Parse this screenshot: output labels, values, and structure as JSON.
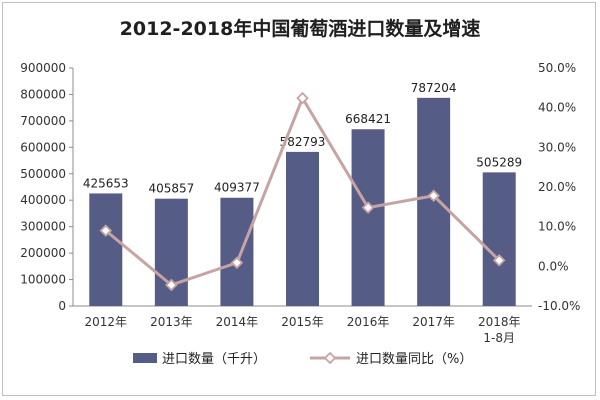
{
  "chart_data": {
    "type": "bar",
    "title": "2012-2018年中国葡萄酒进口数量及增速",
    "categories": [
      "2012年",
      "2013年",
      "2014年",
      "2015年",
      "2016年",
      "2017年",
      "2018年\n1-8月"
    ],
    "left_axis": {
      "ylim": [
        0,
        900000
      ],
      "ticks": [
        "0",
        "100000",
        "200000",
        "300000",
        "400000",
        "500000",
        "600000",
        "700000",
        "800000",
        "900000"
      ]
    },
    "right_axis": {
      "ylim": [
        -10,
        50
      ],
      "ticks": [
        "-10.0%",
        "0.0%",
        "10.0%",
        "20.0%",
        "30.0%",
        "40.0%",
        "50.0%"
      ]
    },
    "series": [
      {
        "name": "进口数量（千升）",
        "type": "bar",
        "axis": "left",
        "values": [
          425653,
          405857,
          409377,
          582793,
          668421,
          787204,
          505289
        ],
        "labels": [
          "425653",
          "405857",
          "409377",
          "582793",
          "668421",
          "787204",
          "505289"
        ],
        "color": "#555d86"
      },
      {
        "name": "进口数量同比（%）",
        "type": "line",
        "axis": "right",
        "values": [
          9.0,
          -4.7,
          0.9,
          42.4,
          14.8,
          17.8,
          1.5
        ],
        "color": "#c8a3a3"
      }
    ],
    "legend": "bottom",
    "grid": false
  }
}
